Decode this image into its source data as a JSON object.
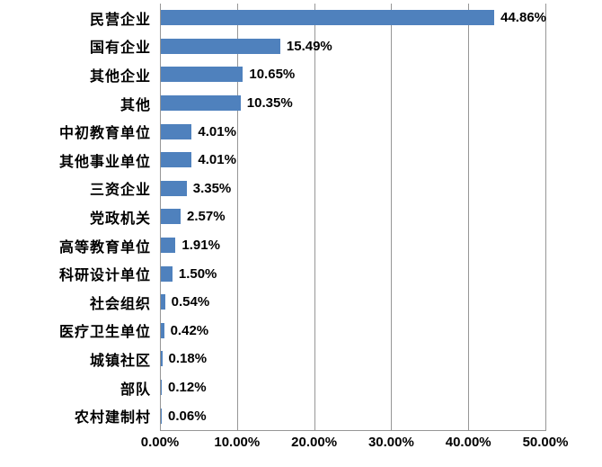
{
  "chart_data": {
    "type": "bar",
    "orientation": "horizontal",
    "title": "",
    "xlabel": "",
    "ylabel": "",
    "categories": [
      "民营企业",
      "国有企业",
      "其他企业",
      "其他",
      "中初教育单位",
      "其他事业单位",
      "三资企业",
      "党政机关",
      "高等教育单位",
      "科研设计单位",
      "社会组织",
      "医疗卫生单位",
      "城镇社区",
      "部队",
      "农村建制村"
    ],
    "values": [
      44.86,
      15.49,
      10.65,
      10.35,
      4.01,
      4.01,
      3.35,
      2.57,
      1.91,
      1.5,
      0.54,
      0.42,
      0.18,
      0.12,
      0.06
    ],
    "value_labels": [
      "44.86%",
      "15.49%",
      "10.65%",
      "10.35%",
      "4.01%",
      "4.01%",
      "3.35%",
      "2.57%",
      "1.91%",
      "1.50%",
      "0.54%",
      "0.42%",
      "0.18%",
      "0.12%",
      "0.06%"
    ],
    "x_ticks": [
      "0.00%",
      "10.00%",
      "20.00%",
      "30.00%",
      "40.00%",
      "50.00%"
    ],
    "xlim": [
      0,
      50
    ],
    "grid": true,
    "legend": false,
    "bar_color": "#4F81BD",
    "gridline_color": "#969696",
    "text_color": "#000000",
    "background_color": "#FFFFFF"
  }
}
